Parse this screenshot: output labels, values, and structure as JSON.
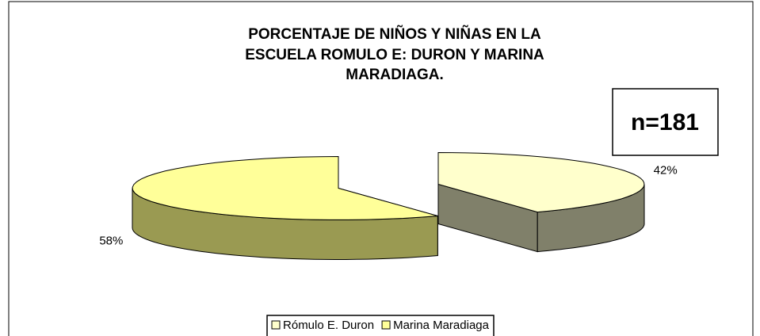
{
  "chart_data": {
    "type": "pie3d",
    "title": [
      "PORCENTAJE DE NIÑOS Y NIÑAS EN LA",
      "ESCUELA ROMULO E: DURON Y MARINA",
      "MARADIAGA."
    ],
    "annotation": "n=181",
    "categories": [
      "Rómulo E. Duron",
      "Marina Maradiaga"
    ],
    "values": [
      42,
      58
    ],
    "value_labels": [
      "42%",
      "58%"
    ],
    "colors": [
      "#ffffcc",
      "#ffff99"
    ],
    "side_colors": [
      "#80806a",
      "#9a9a52"
    ],
    "legend": "bottom"
  }
}
